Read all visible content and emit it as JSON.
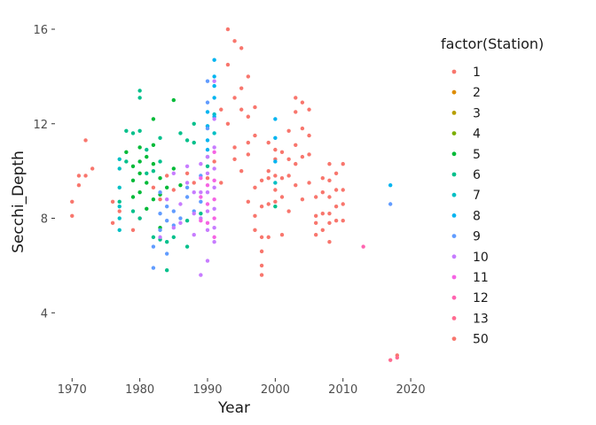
{
  "chart_data": {
    "type": "scatter",
    "xlabel": "Year",
    "ylabel": "Secchi_Depth",
    "xlim": [
      1968,
      2023
    ],
    "ylim": [
      1.2,
      16.6
    ],
    "xticks": [
      1970,
      1980,
      1990,
      2000,
      2010,
      2020
    ],
    "yticks": [
      4,
      8,
      12,
      16
    ],
    "grid": false,
    "legend": {
      "title": "factor(Station)",
      "position": "right",
      "entries": [
        {
          "name": "1",
          "color": "#F8766D"
        },
        {
          "name": "2",
          "color": "#DE8C00"
        },
        {
          "name": "3",
          "color": "#B79F00"
        },
        {
          "name": "4",
          "color": "#7CAE00"
        },
        {
          "name": "5",
          "color": "#00BA38"
        },
        {
          "name": "6",
          "color": "#00C08B"
        },
        {
          "name": "7",
          "color": "#00BFC4"
        },
        {
          "name": "8",
          "color": "#00B4F0"
        },
        {
          "name": "9",
          "color": "#619CFF"
        },
        {
          "name": "10",
          "color": "#C77CFF"
        },
        {
          "name": "11",
          "color": "#F564E3"
        },
        {
          "name": "12",
          "color": "#FF64B0"
        },
        {
          "name": "13",
          "color": "#FF6C91"
        },
        {
          "name": "50",
          "color": "#F8766D"
        }
      ]
    },
    "series": [
      {
        "name": "1",
        "color": "#F8766D",
        "points": [
          [
            1970,
            8.7
          ],
          [
            1970,
            8.1
          ],
          [
            1971,
            9.4
          ],
          [
            1971,
            9.8
          ],
          [
            1972,
            11.3
          ],
          [
            1972,
            9.8
          ],
          [
            1973,
            10.1
          ],
          [
            1976,
            7.8
          ],
          [
            1976,
            8.7
          ],
          [
            1977,
            8.3
          ],
          [
            1979,
            7.5
          ],
          [
            1980,
            8.0
          ],
          [
            1982,
            9.3
          ],
          [
            1983,
            8.8
          ],
          [
            1984,
            9.8
          ],
          [
            1985,
            9.2
          ],
          [
            1987,
            9.9
          ],
          [
            1988,
            9.5
          ],
          [
            1990,
            9.7
          ],
          [
            1991,
            10.4
          ],
          [
            1992,
            9.5
          ],
          [
            1992,
            12.6
          ],
          [
            1993,
            16.0
          ],
          [
            1993,
            14.5
          ],
          [
            1993,
            12.0
          ],
          [
            1994,
            15.5
          ],
          [
            1994,
            13.1
          ],
          [
            1994,
            11.0
          ],
          [
            1994,
            10.5
          ],
          [
            1995,
            15.2
          ],
          [
            1995,
            12.6
          ],
          [
            1995,
            10.0
          ],
          [
            1995,
            13.5
          ],
          [
            1996,
            12.3
          ],
          [
            1996,
            11.2
          ],
          [
            1996,
            14.0
          ],
          [
            1996,
            10.7
          ],
          [
            1996,
            8.7
          ],
          [
            1997,
            12.7
          ],
          [
            1997,
            11.5
          ],
          [
            1997,
            9.3
          ],
          [
            1997,
            8.1
          ],
          [
            1997,
            7.5
          ],
          [
            1998,
            9.6
          ],
          [
            1998,
            8.5
          ],
          [
            1998,
            7.2
          ],
          [
            1998,
            6.0
          ],
          [
            1998,
            5.6
          ],
          [
            1998,
            6.6
          ],
          [
            1999,
            11.2
          ],
          [
            1999,
            10.0
          ],
          [
            1999,
            9.7
          ],
          [
            1999,
            8.6
          ],
          [
            1999,
            7.2
          ],
          [
            2000,
            10.9
          ],
          [
            2000,
            10.5
          ],
          [
            2000,
            9.8
          ],
          [
            2000,
            8.7
          ],
          [
            2000,
            9.2
          ],
          [
            2001,
            10.8
          ],
          [
            2001,
            9.7
          ],
          [
            2001,
            7.3
          ],
          [
            2001,
            8.9
          ],
          [
            2002,
            11.7
          ],
          [
            2002,
            10.5
          ],
          [
            2002,
            9.8
          ],
          [
            2002,
            8.3
          ],
          [
            2003,
            13.1
          ],
          [
            2003,
            12.5
          ],
          [
            2003,
            11.1
          ],
          [
            2003,
            10.3
          ],
          [
            2003,
            9.4
          ],
          [
            2004,
            12.9
          ],
          [
            2004,
            11.8
          ],
          [
            2004,
            10.6
          ],
          [
            2004,
            8.8
          ],
          [
            2005,
            12.6
          ],
          [
            2005,
            11.5
          ],
          [
            2005,
            10.7
          ],
          [
            2005,
            9.5
          ],
          [
            2006,
            8.9
          ],
          [
            2006,
            8.1
          ],
          [
            2006,
            7.8
          ],
          [
            2006,
            7.3
          ],
          [
            2007,
            9.1
          ],
          [
            2007,
            8.2
          ],
          [
            2007,
            7.5
          ],
          [
            2007,
            9.7
          ],
          [
            2008,
            10.3
          ],
          [
            2008,
            9.6
          ],
          [
            2008,
            8.9
          ],
          [
            2008,
            8.2
          ],
          [
            2008,
            7.8
          ],
          [
            2008,
            7.0
          ],
          [
            2009,
            9.2
          ],
          [
            2009,
            8.5
          ],
          [
            2009,
            7.9
          ],
          [
            2009,
            9.9
          ],
          [
            2010,
            10.3
          ],
          [
            2010,
            9.2
          ],
          [
            2010,
            8.6
          ],
          [
            2010,
            7.9
          ],
          [
            2018,
            2.2
          ]
        ]
      },
      {
        "name": "5",
        "color": "#00BA38",
        "points": [
          [
            1978,
            10.8
          ],
          [
            1979,
            10.2
          ],
          [
            1979,
            9.6
          ],
          [
            1979,
            8.9
          ],
          [
            1980,
            10.4
          ],
          [
            1980,
            9.9
          ],
          [
            1980,
            9.1
          ],
          [
            1980,
            11.0
          ],
          [
            1981,
            10.6
          ],
          [
            1981,
            9.5
          ],
          [
            1981,
            8.4
          ],
          [
            1982,
            12.2
          ],
          [
            1982,
            11.1
          ],
          [
            1982,
            10.3
          ],
          [
            1982,
            8.8
          ],
          [
            1983,
            9.7
          ],
          [
            1983,
            9.0
          ],
          [
            1983,
            7.6
          ],
          [
            1984,
            9.3
          ],
          [
            1985,
            10.1
          ],
          [
            1985,
            13.0
          ],
          [
            1986,
            9.4
          ]
        ]
      },
      {
        "name": "6",
        "color": "#00C08B",
        "points": [
          [
            1977,
            8.7
          ],
          [
            1978,
            11.7
          ],
          [
            1978,
            10.4
          ],
          [
            1979,
            8.3
          ],
          [
            1979,
            11.6
          ],
          [
            1980,
            13.4
          ],
          [
            1980,
            13.1
          ],
          [
            1980,
            11.7
          ],
          [
            1980,
            8.0
          ],
          [
            1981,
            10.9
          ],
          [
            1981,
            9.9
          ],
          [
            1982,
            7.2
          ],
          [
            1982,
            10.0
          ],
          [
            1983,
            11.4
          ],
          [
            1983,
            10.4
          ],
          [
            1983,
            7.1
          ],
          [
            1984,
            5.8
          ],
          [
            1984,
            7.0
          ],
          [
            1985,
            7.2
          ],
          [
            1986,
            11.6
          ],
          [
            1987,
            11.3
          ],
          [
            1987,
            7.9
          ],
          [
            1987,
            6.8
          ],
          [
            1988,
            12.0
          ],
          [
            1988,
            11.2
          ],
          [
            1989,
            8.2
          ],
          [
            1990,
            11.9
          ],
          [
            1990,
            10.6
          ],
          [
            1990,
            10.2
          ],
          [
            2000,
            8.5
          ]
        ]
      },
      {
        "name": "7",
        "color": "#00BFC4",
        "points": [
          [
            1977,
            10.5
          ],
          [
            1977,
            10.1
          ],
          [
            1977,
            9.3
          ],
          [
            1977,
            8.5
          ],
          [
            1977,
            8.0
          ],
          [
            1977,
            7.5
          ],
          [
            1991,
            12.4
          ],
          [
            1991,
            11.6
          ],
          [
            2000,
            9.5
          ]
        ]
      },
      {
        "name": "8",
        "color": "#00B4F0",
        "points": [
          [
            1990,
            12.5
          ],
          [
            1990,
            11.9
          ],
          [
            1990,
            11.3
          ],
          [
            1990,
            10.9
          ],
          [
            1991,
            14.7
          ],
          [
            1991,
            14.0
          ],
          [
            1991,
            13.6
          ],
          [
            1991,
            13.1
          ],
          [
            1991,
            12.3
          ],
          [
            2000,
            12.2
          ],
          [
            2000,
            11.4
          ],
          [
            2000,
            10.4
          ],
          [
            2017,
            9.4
          ]
        ]
      },
      {
        "name": "9",
        "color": "#619CFF",
        "points": [
          [
            1982,
            5.9
          ],
          [
            1982,
            6.8
          ],
          [
            1983,
            9.1
          ],
          [
            1983,
            8.2
          ],
          [
            1983,
            7.5
          ],
          [
            1984,
            8.5
          ],
          [
            1984,
            7.9
          ],
          [
            1984,
            6.5
          ],
          [
            1985,
            7.7
          ],
          [
            1985,
            8.3
          ],
          [
            1986,
            8.0
          ],
          [
            1987,
            8.9
          ],
          [
            1987,
            9.3
          ],
          [
            1988,
            8.3
          ],
          [
            1989,
            9.8
          ],
          [
            1989,
            8.7
          ],
          [
            1990,
            13.8
          ],
          [
            1990,
            12.9
          ],
          [
            1990,
            11.8
          ],
          [
            2017,
            8.6
          ]
        ]
      },
      {
        "name": "10",
        "color": "#C77CFF",
        "points": [
          [
            1983,
            7.2
          ],
          [
            1984,
            8.8
          ],
          [
            1985,
            7.6
          ],
          [
            1985,
            9.9
          ],
          [
            1986,
            8.6
          ],
          [
            1986,
            7.8
          ],
          [
            1987,
            10.2
          ],
          [
            1987,
            9.5
          ],
          [
            1988,
            9.1
          ],
          [
            1988,
            8.2
          ],
          [
            1988,
            7.3
          ],
          [
            1989,
            10.3
          ],
          [
            1989,
            9.1
          ],
          [
            1989,
            8.0
          ],
          [
            1989,
            5.6
          ],
          [
            1990,
            10.6
          ],
          [
            1990,
            9.9
          ],
          [
            1990,
            9.1
          ],
          [
            1990,
            8.3
          ],
          [
            1990,
            7.5
          ],
          [
            1990,
            6.2
          ],
          [
            1991,
            13.8
          ],
          [
            1991,
            12.2
          ],
          [
            1991,
            11.0
          ],
          [
            1991,
            10.1
          ],
          [
            1991,
            9.3
          ],
          [
            1991,
            8.4
          ],
          [
            1991,
            7.6
          ],
          [
            1991,
            7.0
          ]
        ]
      },
      {
        "name": "11",
        "color": "#F564E3",
        "points": [
          [
            1989,
            9.7
          ],
          [
            1989,
            8.9
          ],
          [
            1989,
            7.9
          ],
          [
            1990,
            9.4
          ],
          [
            1990,
            8.6
          ],
          [
            1990,
            7.8
          ],
          [
            1991,
            10.8
          ],
          [
            1991,
            9.6
          ],
          [
            1991,
            8.8
          ],
          [
            1991,
            8.0
          ],
          [
            1991,
            7.2
          ]
        ]
      },
      {
        "name": "12",
        "color": "#FF64B0",
        "points": [
          [
            2013,
            6.8
          ]
        ]
      },
      {
        "name": "13",
        "color": "#FF6C91",
        "points": [
          [
            2017,
            2.0
          ],
          [
            2018,
            2.1
          ]
        ]
      }
    ]
  }
}
